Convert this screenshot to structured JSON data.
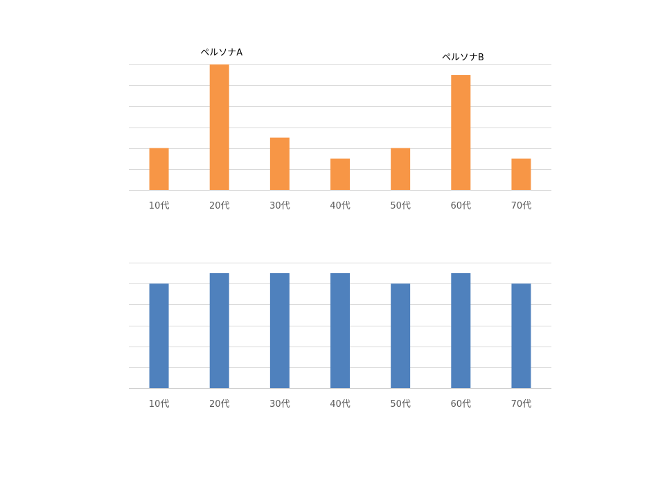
{
  "chart_data": [
    {
      "type": "bar",
      "categories": [
        "10代",
        "20代",
        "30代",
        "40代",
        "50代",
        "60代",
        "70代"
      ],
      "values": [
        2,
        6,
        2.5,
        1.5,
        2,
        5.5,
        1.5
      ],
      "ylim": [
        0,
        6
      ],
      "grid": true,
      "color": "#F79646",
      "annotations": [
        {
          "text": "ペルソナA",
          "category": "20代"
        },
        {
          "text": "ペルソナB",
          "category": "60代"
        }
      ]
    },
    {
      "type": "bar",
      "categories": [
        "10代",
        "20代",
        "30代",
        "40代",
        "50代",
        "60代",
        "70代"
      ],
      "values": [
        5,
        5.5,
        5.5,
        5.5,
        5,
        5.5,
        5
      ],
      "ylim": [
        0,
        6
      ],
      "grid": true,
      "color": "#4F81BD",
      "annotations": []
    }
  ]
}
